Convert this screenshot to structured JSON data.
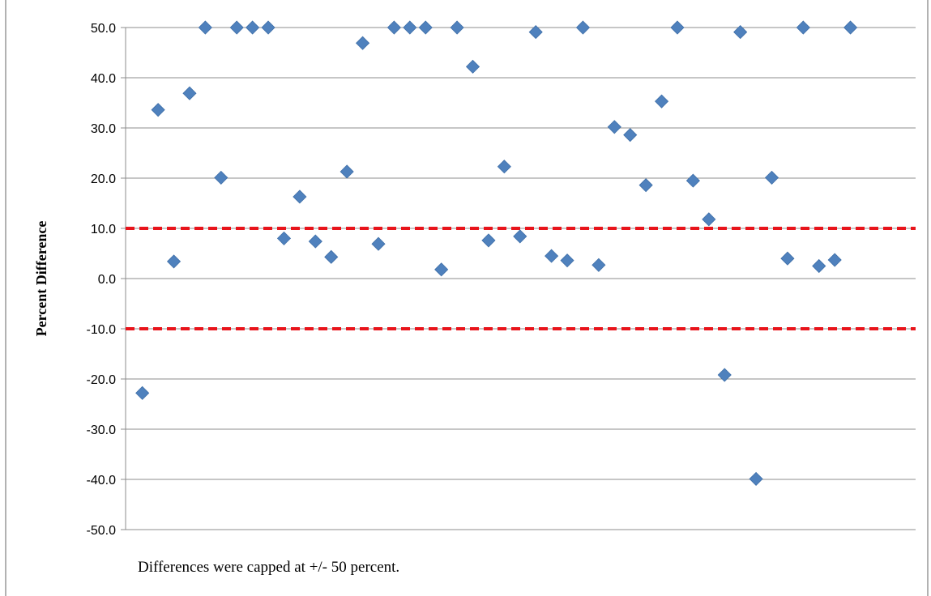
{
  "chart_data": {
    "type": "scatter",
    "title": "",
    "xlabel": "",
    "ylabel": "Percent Difference",
    "ylim": [
      -50,
      50
    ],
    "y_ticks": [
      "50.0",
      "40.0",
      "30.0",
      "20.0",
      "10.0",
      "0.0",
      "-10.0",
      "-20.0",
      "-30.0",
      "-40.0",
      "-50.0"
    ],
    "y_tick_values": [
      50,
      40,
      30,
      20,
      10,
      0,
      -10,
      -20,
      -30,
      -40,
      -50
    ],
    "grid": true,
    "reference_lines": [
      {
        "y": 10,
        "color": "#e8141b",
        "style": "dashed"
      },
      {
        "y": -10,
        "color": "#e8141b",
        "style": "dashed"
      }
    ],
    "series": [
      {
        "marker": "diamond",
        "color": "#4f81bd",
        "values": [
          -22.8,
          33.6,
          3.4,
          36.9,
          50.0,
          20.1,
          50.0,
          50.0,
          50.0,
          8.0,
          16.3,
          7.4,
          4.3,
          21.3,
          46.9,
          6.9,
          50.0,
          50.0,
          50.0,
          1.8,
          50.0,
          42.2,
          7.6,
          22.3,
          8.4,
          49.1,
          4.5,
          3.6,
          50.0,
          2.7,
          30.2,
          28.6,
          18.6,
          35.3,
          50.0,
          19.5,
          11.8,
          -19.2,
          49.1,
          -39.9,
          20.1,
          4.0,
          50.0,
          2.5,
          3.7,
          50.0
        ]
      }
    ],
    "note": "Differences were capped at +/- 50 percent."
  }
}
